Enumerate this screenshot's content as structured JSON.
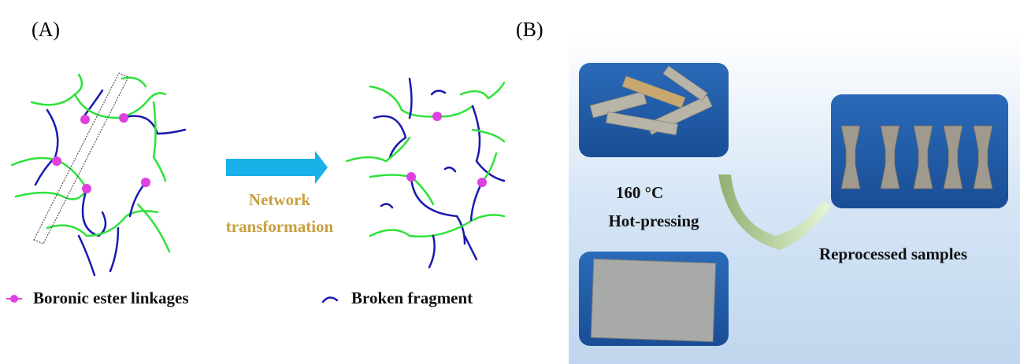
{
  "panel_a": {
    "label": "(A)",
    "arrow_text": [
      "Network",
      "transformation"
    ],
    "legend": [
      "Boronic ester linkages",
      "Broken fragment"
    ]
  },
  "panel_b": {
    "label": "(B)",
    "process": [
      "160 °C",
      "Hot-pressing"
    ],
    "result": "Reprocessed samples"
  }
}
